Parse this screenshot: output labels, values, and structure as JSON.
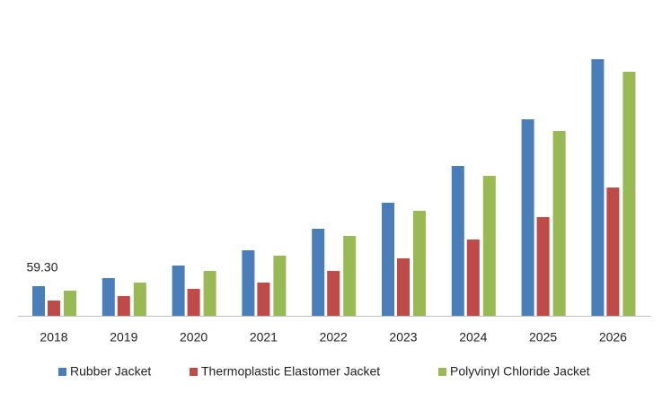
{
  "chart_data": {
    "type": "bar",
    "categories": [
      "2018",
      "2019",
      "2020",
      "2021",
      "2022",
      "2023",
      "2024",
      "2025",
      "2026"
    ],
    "series": [
      {
        "name": "Rubber Jacket",
        "color": "#4a7ebb",
        "values": [
          59.3,
          75.5,
          100.6,
          131.2,
          174.3,
          226.4,
          300.1,
          393.5,
          513.9
        ],
        "value_labels": [
          "59.30",
          null,
          null,
          null,
          null,
          null,
          null,
          null,
          null
        ]
      },
      {
        "name": "Thermoplastic Elastomer Jacket",
        "color": "#be4b48",
        "values": [
          30.5,
          39.5,
          53.9,
          66.5,
          89.8,
          115.0,
          152.7,
          197.6,
          256.9
        ]
      },
      {
        "name": "Polyvinyl Chloride Jacket",
        "color": "#98b954",
        "values": [
          50.3,
          66.5,
          89.8,
          120.4,
          159.9,
          210.2,
          280.3,
          370.2,
          488.7
        ]
      }
    ],
    "legend": "bottom"
  }
}
